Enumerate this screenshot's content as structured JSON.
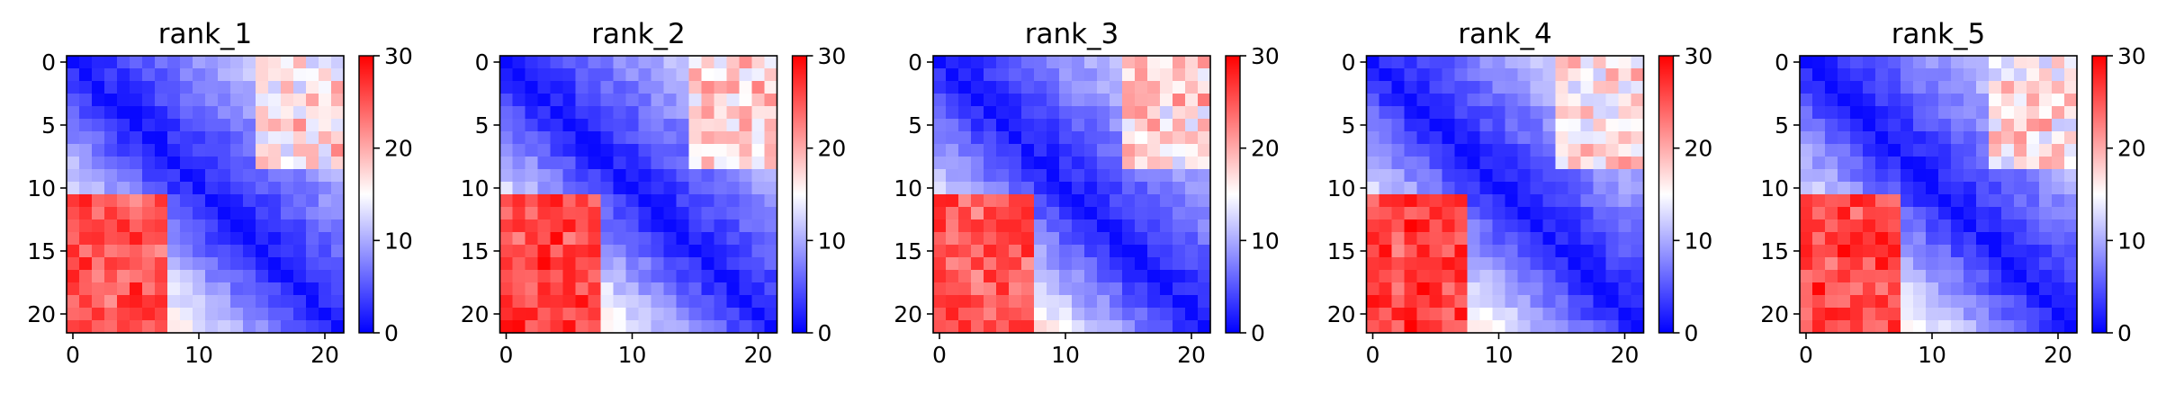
{
  "chart_data": [
    {
      "type": "heatmap",
      "title": "rank_1",
      "colormap": "bwr",
      "vmin": 0,
      "vmax": 30,
      "n": 22,
      "x_ticks": [
        0,
        10,
        20
      ],
      "y_ticks": [
        0,
        5,
        10,
        15,
        20
      ],
      "colorbar_ticks": [
        0,
        10,
        20,
        30
      ],
      "seed": 11,
      "lower_block": 24,
      "upper_block": 15
    },
    {
      "type": "heatmap",
      "title": "rank_2",
      "colormap": "bwr",
      "vmin": 0,
      "vmax": 30,
      "n": 22,
      "x_ticks": [
        0,
        10,
        20
      ],
      "y_ticks": [
        0,
        5,
        10,
        15,
        20
      ],
      "colorbar_ticks": [
        0,
        10,
        20,
        30
      ],
      "seed": 23,
      "lower_block": 25,
      "upper_block": 16
    },
    {
      "type": "heatmap",
      "title": "rank_3",
      "colormap": "bwr",
      "vmin": 0,
      "vmax": 30,
      "n": 22,
      "x_ticks": [
        0,
        10,
        20
      ],
      "y_ticks": [
        0,
        5,
        10,
        15,
        20
      ],
      "colorbar_ticks": [
        0,
        10,
        20,
        30
      ],
      "seed": 37,
      "lower_block": 24,
      "upper_block": 16
    },
    {
      "type": "heatmap",
      "title": "rank_4",
      "colormap": "bwr",
      "vmin": 0,
      "vmax": 30,
      "n": 22,
      "x_ticks": [
        0,
        10,
        20
      ],
      "y_ticks": [
        0,
        5,
        10,
        15,
        20
      ],
      "colorbar_ticks": [
        0,
        10,
        20,
        30
      ],
      "seed": 41,
      "lower_block": 25,
      "upper_block": 15
    },
    {
      "type": "heatmap",
      "title": "rank_5",
      "colormap": "bwr",
      "vmin": 0,
      "vmax": 30,
      "n": 22,
      "x_ticks": [
        0,
        10,
        20
      ],
      "y_ticks": [
        0,
        5,
        10,
        15,
        20
      ],
      "colorbar_ticks": [
        0,
        10,
        20,
        30
      ],
      "seed": 53,
      "lower_block": 25,
      "upper_block": 15
    }
  ]
}
